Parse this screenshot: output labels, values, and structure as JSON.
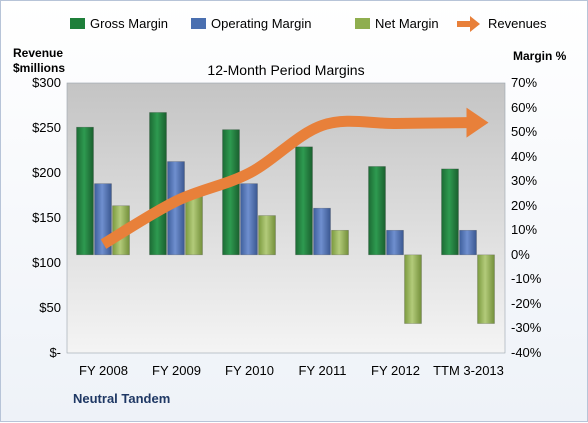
{
  "chart_data": {
    "type": "bar",
    "title": "12-Month Period Margins",
    "company": "Neutral Tandem",
    "categories": [
      "FY 2008",
      "FY 2009",
      "FY 2010",
      "FY 2011",
      "FY 2012",
      "TTM 3-2013"
    ],
    "series": [
      {
        "name": "Gross Margin",
        "axis": "right",
        "unit": "%",
        "color": "#1e7f3a",
        "values": [
          52,
          58,
          51,
          44,
          36,
          35
        ]
      },
      {
        "name": "Operating Margin",
        "axis": "right",
        "unit": "%",
        "color": "#4a6fb0",
        "values": [
          29,
          38,
          29,
          19,
          10,
          10
        ]
      },
      {
        "name": "Net Margin",
        "axis": "right",
        "unit": "%",
        "color": "#8fae4f",
        "values": [
          20,
          24,
          16,
          10,
          -28,
          -28
        ]
      },
      {
        "name": "Revenues",
        "axis": "left",
        "type": "line",
        "unit": "$millions",
        "color": "#e8803a",
        "values": [
          121,
          169,
          200,
          253,
          255,
          256
        ]
      }
    ],
    "left_axis": {
      "label_line1": "Revenue",
      "label_line2": "$millions",
      "ylim": [
        0,
        300
      ],
      "ticks": [
        "$300",
        "$250",
        "$200",
        "$150",
        "$100",
        "$50",
        "$-"
      ]
    },
    "right_axis": {
      "label": "Margin %",
      "ylim": [
        -40,
        70
      ],
      "ticks": [
        "70%",
        "60%",
        "50%",
        "40%",
        "30%",
        "20%",
        "10%",
        "0%",
        "-10%",
        "-20%",
        "-30%",
        "-40%"
      ]
    },
    "legend_position": "top",
    "grid": false
  }
}
